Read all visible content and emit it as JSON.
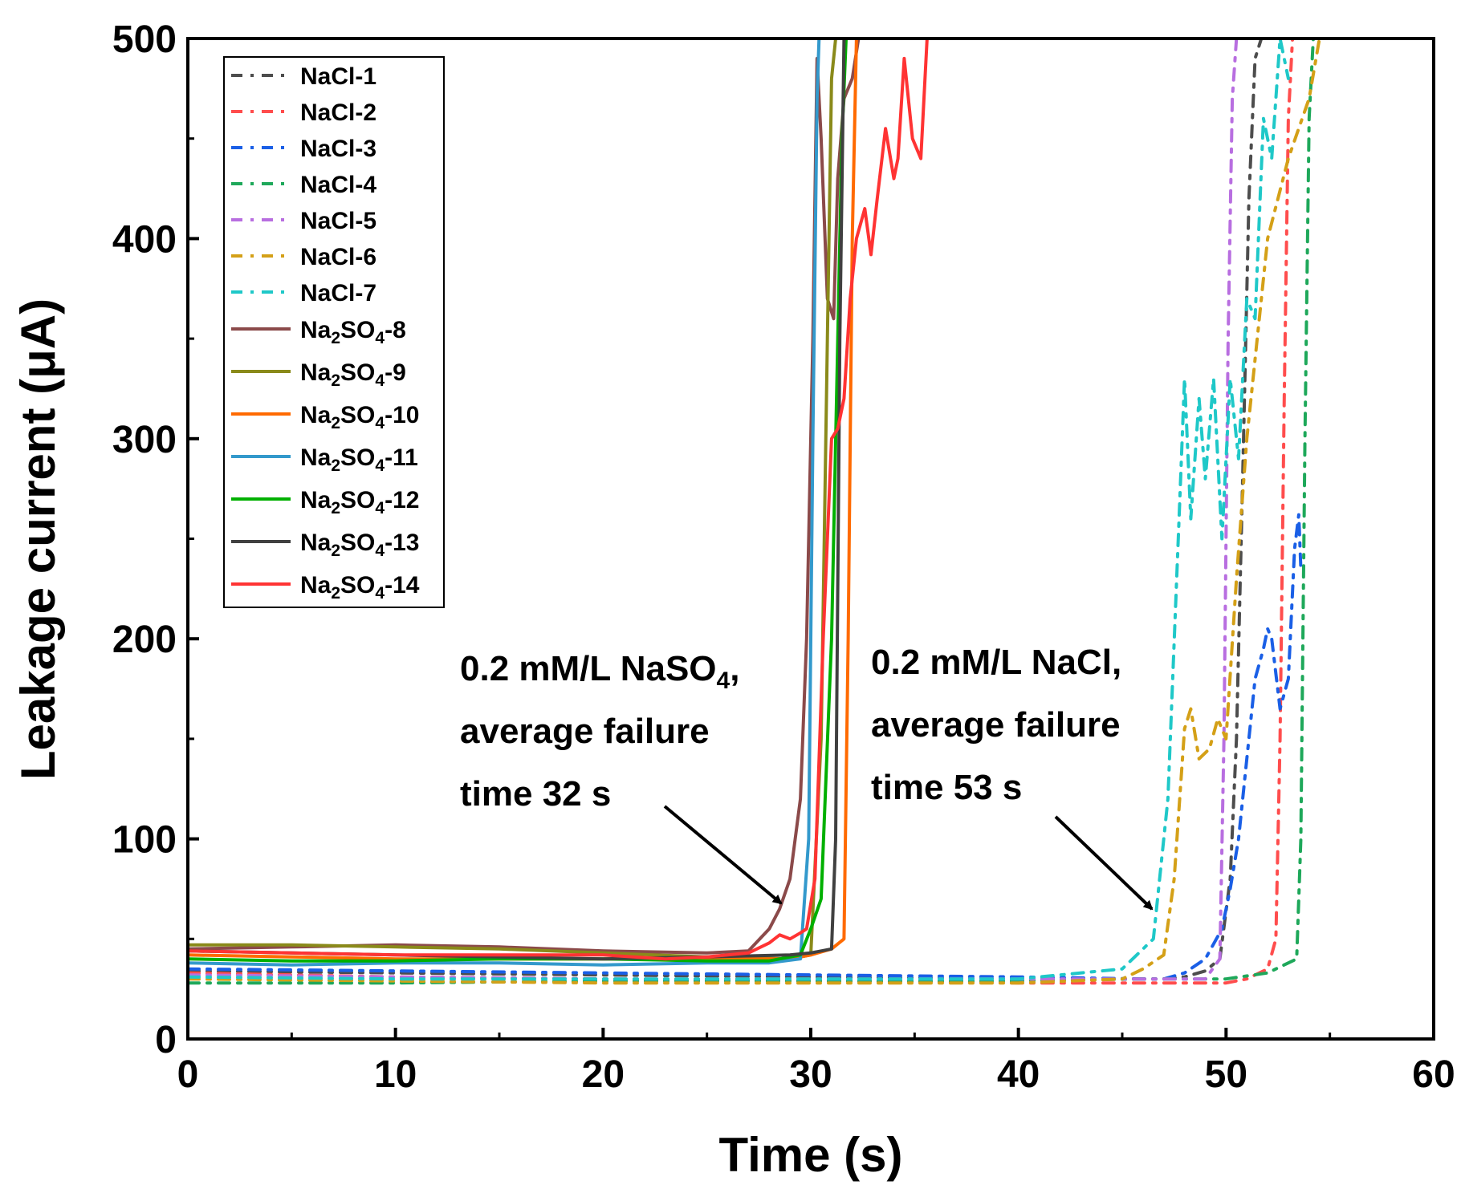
{
  "chart_data": {
    "type": "line",
    "title": "",
    "xlabel": "Time (s)",
    "ylabel": "Leakage current (μA)",
    "xlim": [
      0,
      60
    ],
    "ylim": [
      0,
      500
    ],
    "xticks": [
      "0",
      "10",
      "20",
      "30",
      "40",
      "50",
      "60"
    ],
    "yticks": [
      "0",
      "100",
      "200",
      "300",
      "400",
      "500"
    ],
    "grid": false,
    "legend_position": "top-left",
    "series": [
      {
        "name": "NaCl-1",
        "display": {
          "base": "NaCl-1"
        },
        "color": "#4d4d4d",
        "dash": "dashdot",
        "x": [
          0,
          10,
          20,
          30,
          40,
          46,
          47,
          48,
          49,
          49.7,
          50.2,
          50.5,
          50.8,
          51.1,
          51.4,
          51.7
        ],
        "y": [
          34,
          33,
          32,
          31,
          30,
          30,
          30,
          31,
          34,
          40,
          80,
          150,
          280,
          420,
          490,
          500
        ]
      },
      {
        "name": "NaCl-2",
        "display": {
          "base": "NaCl-2"
        },
        "color": "#ff4d4d",
        "dash": "dashdot",
        "x": [
          0,
          10,
          20,
          30,
          40,
          46,
          50,
          51,
          52,
          52.4,
          52.6,
          52.8,
          53.0,
          53.2
        ],
        "y": [
          33,
          31,
          30,
          29,
          28,
          28,
          28,
          30,
          35,
          50,
          150,
          320,
          460,
          500
        ]
      },
      {
        "name": "NaCl-3",
        "display": {
          "base": "NaCl-3"
        },
        "color": "#1a5fe6",
        "dash": "dashdot",
        "x": [
          0,
          10,
          20,
          30,
          40,
          46,
          47,
          48,
          49,
          49.8,
          50.2,
          50.6,
          51,
          51.4,
          51.8,
          52.0,
          52.2,
          52.6,
          53.0,
          53.3,
          53.5,
          53.6
        ],
        "y": [
          35,
          34,
          33,
          32,
          31,
          30,
          30,
          33,
          40,
          55,
          75,
          100,
          140,
          180,
          195,
          205,
          200,
          165,
          180,
          245,
          262,
          235
        ]
      },
      {
        "name": "NaCl-4",
        "display": {
          "base": "NaCl-4"
        },
        "color": "#1ea85a",
        "dash": "dashdot",
        "x": [
          0,
          10,
          20,
          30,
          40,
          46,
          50,
          52,
          53.4,
          53.6,
          53.8,
          54.0,
          54.2
        ],
        "y": [
          28,
          28,
          29,
          29,
          29,
          30,
          30,
          33,
          40,
          100,
          300,
          460,
          500
        ]
      },
      {
        "name": "NaCl-5",
        "display": {
          "base": "NaCl-5"
        },
        "color": "#b86ee0",
        "dash": "dashdot",
        "x": [
          0,
          10,
          20,
          30,
          40,
          46,
          48,
          49,
          49.7,
          49.9,
          50.1,
          50.3,
          50.5
        ],
        "y": [
          32,
          31,
          30,
          30,
          30,
          30,
          30,
          30,
          40,
          150,
          350,
          470,
          500
        ]
      },
      {
        "name": "NaCl-6",
        "display": {
          "base": "NaCl-6"
        },
        "color": "#d4a017",
        "dash": "dashdot",
        "x": [
          0,
          10,
          20,
          30,
          40,
          45,
          46,
          47,
          47.5,
          48,
          48.3,
          48.7,
          49.2,
          49.6,
          50.0,
          50.5,
          51,
          52,
          53,
          54,
          54.5
        ],
        "y": [
          30,
          29,
          28,
          28,
          28,
          30,
          35,
          42,
          80,
          155,
          165,
          140,
          145,
          160,
          150,
          230,
          300,
          400,
          440,
          470,
          500
        ]
      },
      {
        "name": "NaCl-7",
        "display": {
          "base": "NaCl-7"
        },
        "color": "#1fc8c8",
        "dash": "dashdot",
        "x": [
          0,
          10,
          20,
          30,
          40,
          45,
          46.5,
          47.2,
          47.7,
          48.0,
          48.3,
          48.7,
          49.0,
          49.4,
          49.8,
          50.2,
          50.6,
          51.0,
          51.4,
          51.8,
          52.2,
          52.6,
          53.0
        ],
        "y": [
          31,
          30,
          30,
          30,
          30,
          35,
          50,
          120,
          250,
          330,
          260,
          320,
          280,
          330,
          250,
          330,
          290,
          370,
          360,
          460,
          440,
          500,
          480
        ]
      },
      {
        "name": "Na2SO4-8",
        "display": {
          "base": "Na",
          "sub1": "2",
          "mid": "SO",
          "sub2": "4",
          "tail": "-8"
        },
        "color": "#8b4a4a",
        "dash": "solid",
        "x": [
          0,
          5,
          10,
          15,
          20,
          25,
          27,
          28,
          28.5,
          29,
          29.5,
          29.8,
          30.1,
          30.3,
          30.5,
          30.8,
          31.1,
          31.3,
          31.6,
          32.0,
          32.3
        ],
        "y": [
          45,
          46,
          47,
          46,
          44,
          43,
          44,
          55,
          65,
          80,
          120,
          200,
          350,
          490,
          450,
          370,
          360,
          430,
          470,
          480,
          500
        ]
      },
      {
        "name": "Na2SO4-9",
        "display": {
          "base": "Na",
          "sub1": "2",
          "mid": "SO",
          "sub2": "4",
          "tail": "-9"
        },
        "color": "#8a8a1a",
        "dash": "solid",
        "x": [
          0,
          5,
          10,
          15,
          20,
          25,
          29,
          30,
          30.5,
          30.8,
          31.0,
          31.2
        ],
        "y": [
          47,
          47,
          46,
          45,
          43,
          41,
          40,
          42,
          150,
          350,
          480,
          500
        ]
      },
      {
        "name": "Na2SO4-10",
        "display": {
          "base": "Na",
          "sub1": "2",
          "mid": "SO",
          "sub2": "4",
          "tail": "-10"
        },
        "color": "#ff6a00",
        "dash": "solid",
        "x": [
          0,
          5,
          10,
          15,
          20,
          25,
          29,
          30,
          31,
          31.6,
          31.8,
          32.0,
          32.2
        ],
        "y": [
          42,
          41,
          40,
          40,
          40,
          40,
          40,
          42,
          45,
          50,
          200,
          400,
          500
        ]
      },
      {
        "name": "Na2SO4-11",
        "display": {
          "base": "Na",
          "sub1": "2",
          "mid": "SO",
          "sub2": "4",
          "tail": "-11"
        },
        "color": "#3399cc",
        "dash": "solid",
        "x": [
          0,
          5,
          10,
          15,
          20,
          25,
          28,
          29.5,
          29.9,
          30.1,
          30.3,
          30.4
        ],
        "y": [
          38,
          37,
          38,
          38,
          37,
          38,
          38,
          40,
          100,
          300,
          470,
          500
        ]
      },
      {
        "name": "Na2SO4-12",
        "display": {
          "base": "Na",
          "sub1": "2",
          "mid": "SO",
          "sub2": "4",
          "tail": "-12"
        },
        "color": "#00b000",
        "dash": "solid",
        "x": [
          0,
          5,
          10,
          15,
          20,
          25,
          28,
          29.5,
          30,
          30.5,
          31,
          31.5,
          31.7
        ],
        "y": [
          40,
          39,
          39,
          40,
          40,
          39,
          39,
          42,
          55,
          70,
          200,
          450,
          500
        ]
      },
      {
        "name": "Na2SO4-13",
        "display": {
          "base": "Na",
          "sub1": "2",
          "mid": "SO",
          "sub2": "4",
          "tail": "-13"
        },
        "color": "#404040",
        "dash": "solid",
        "x": [
          0,
          5,
          10,
          15,
          20,
          25,
          29,
          30,
          31,
          31.2,
          31.4,
          31.6
        ],
        "y": [
          44,
          43,
          42,
          41,
          40,
          41,
          42,
          43,
          45,
          100,
          350,
          500
        ]
      },
      {
        "name": "Na2SO4-14",
        "display": {
          "base": "Na",
          "sub1": "2",
          "mid": "SO",
          "sub2": "4",
          "tail": "-14"
        },
        "color": "#ff3333",
        "dash": "solid",
        "x": [
          0,
          5,
          10,
          15,
          20,
          23,
          25,
          27,
          28,
          28.5,
          29,
          29.5,
          29.8,
          30.2,
          30.6,
          31.0,
          31.3,
          31.6,
          31.9,
          32.2,
          32.6,
          32.9,
          33.2,
          33.6,
          34.0,
          34.2,
          34.5,
          34.9,
          35.3,
          35.6
        ],
        "y": [
          44,
          43,
          42,
          42,
          42,
          40,
          41,
          43,
          48,
          52,
          50,
          53,
          55,
          80,
          200,
          300,
          305,
          320,
          370,
          400,
          415,
          392,
          420,
          455,
          430,
          440,
          490,
          450,
          440,
          500
        ]
      }
    ],
    "annotations": [
      {
        "line1_a": "0.2 mM/L NaSO",
        "line1_sub": "4",
        "line1_b": ",",
        "line2": "average failure",
        "line3": "time 32 s",
        "target_x": 28.4,
        "target_y": 66
      },
      {
        "line1_a": "0.2 mM/L NaCl,",
        "line2": "average failure",
        "line3": "time 53 s",
        "target_x": 47.1,
        "target_y": 62
      }
    ]
  }
}
